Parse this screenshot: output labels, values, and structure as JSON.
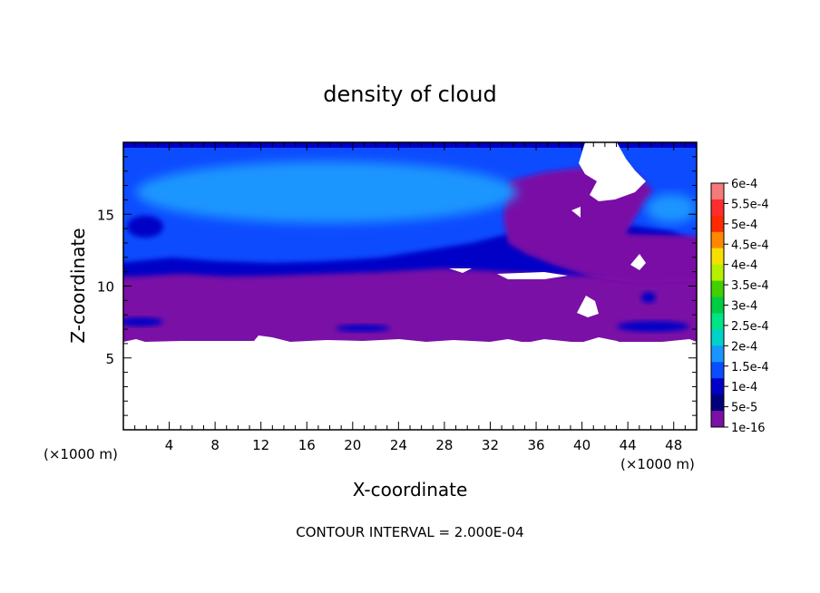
{
  "chart_data": {
    "type": "heatmap",
    "title": "density of cloud",
    "xlabel": "X-coordinate",
    "ylabel": "Z-coordinate",
    "x_unit": "(×1000 m)",
    "xlim": [
      0,
      50
    ],
    "ylim": [
      0,
      20
    ],
    "x_ticks": [
      4,
      8,
      12,
      16,
      20,
      24,
      28,
      32,
      36,
      40,
      44,
      48
    ],
    "y_ticks": [
      5,
      10,
      15
    ],
    "footer": "CONTOUR INTERVAL = 2.000E-04",
    "colorbar": {
      "labels": [
        "6e-4",
        "5.5e-4",
        "5e-4",
        "4.5e-4",
        "4e-4",
        "3.5e-4",
        "3e-4",
        "2.5e-4",
        "2e-4",
        "1.5e-4",
        "1e-4",
        "5e-5",
        "1e-16"
      ],
      "colors": [
        "#f47b7b",
        "#ff2d2d",
        "#ff2a00",
        "#ff8800",
        "#f7e000",
        "#b4f000",
        "#42d000",
        "#00cc44",
        "#00e488",
        "#00d2c8",
        "#1a96ff",
        "#0a4cff",
        "#0000c6",
        "#00007a",
        "#7a10a6"
      ]
    },
    "regions": {
      "cloud_base_z": 6.1,
      "bands": [
        {
          "z_range": [
            6.1,
            10.4
          ],
          "level": "1e-16",
          "color": "#7a10a6"
        },
        {
          "z_range": [
            10.4,
            11.2
          ],
          "level": "5e-5",
          "color": "#0000c6"
        },
        {
          "z_range": [
            11.2,
            19.8
          ],
          "level": "1e-4",
          "color": "#0a4cff"
        },
        {
          "z_range": [
            14.5,
            18.5
          ],
          "x_range": [
            4,
            30
          ],
          "level": "1.5e-4",
          "color": "#1a96ff"
        }
      ]
    }
  }
}
